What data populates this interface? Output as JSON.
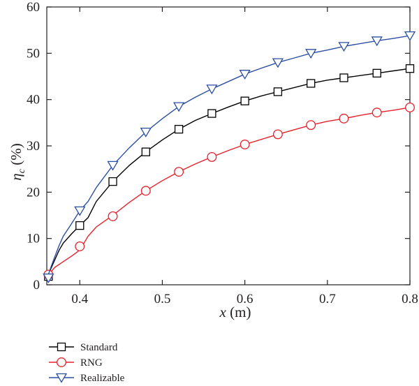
{
  "chart_data": {
    "type": "line",
    "xlabel": {
      "var": "x",
      "unit": " (m)"
    },
    "ylabel": {
      "var": "η",
      "sub": "c",
      "unit": " (%)"
    },
    "xlim": [
      0.36,
      0.8
    ],
    "ylim": [
      0,
      60
    ],
    "xticks": [
      "0.4",
      "0.5",
      "0.6",
      "0.7",
      "0.8"
    ],
    "yticks": [
      "0",
      "10",
      "20",
      "30",
      "40",
      "50",
      "60"
    ],
    "xtick_values": [
      0.4,
      0.5,
      0.6,
      0.7,
      0.8
    ],
    "ytick_values": [
      0,
      10,
      20,
      30,
      40,
      50,
      60
    ],
    "grid": false,
    "legend_position": "bottom-left",
    "series": [
      {
        "name": "Standard",
        "color": "#000000",
        "marker": "square",
        "x": [
          0.36,
          0.365,
          0.37,
          0.375,
          0.38,
          0.39,
          0.4,
          0.41,
          0.42,
          0.44,
          0.46,
          0.48,
          0.5,
          0.52,
          0.54,
          0.56,
          0.58,
          0.6,
          0.62,
          0.64,
          0.66,
          0.68,
          0.7,
          0.72,
          0.74,
          0.76,
          0.78,
          0.8
        ],
        "y": [
          1.5,
          3.5,
          5.5,
          7.5,
          9.0,
          11.0,
          12.8,
          14.5,
          18.0,
          22.3,
          25.8,
          28.7,
          31.3,
          33.6,
          35.5,
          37.0,
          38.4,
          39.7,
          40.8,
          41.7,
          42.6,
          43.5,
          44.2,
          44.7,
          45.2,
          45.7,
          46.2,
          46.7
        ],
        "marker_x": [
          0.362,
          0.4,
          0.44,
          0.48,
          0.52,
          0.56,
          0.6,
          0.64,
          0.68,
          0.72,
          0.76,
          0.8
        ],
        "marker_y": [
          1.8,
          12.8,
          22.3,
          28.7,
          33.6,
          37.0,
          39.7,
          41.7,
          43.5,
          44.7,
          45.7,
          46.7
        ]
      },
      {
        "name": "RNG",
        "color": "#e8202a",
        "marker": "circle",
        "x": [
          0.36,
          0.365,
          0.37,
          0.38,
          0.39,
          0.4,
          0.41,
          0.42,
          0.44,
          0.46,
          0.48,
          0.5,
          0.52,
          0.54,
          0.56,
          0.58,
          0.6,
          0.62,
          0.64,
          0.66,
          0.68,
          0.7,
          0.72,
          0.74,
          0.76,
          0.78,
          0.8
        ],
        "y": [
          1.5,
          2.8,
          3.8,
          5.0,
          6.2,
          7.5,
          10.5,
          12.5,
          15.0,
          17.8,
          20.3,
          22.5,
          24.4,
          26.1,
          27.6,
          29.0,
          30.3,
          31.4,
          32.5,
          33.5,
          34.5,
          35.3,
          35.9,
          36.6,
          37.2,
          37.7,
          38.3
        ],
        "marker_x": [
          0.362,
          0.4,
          0.44,
          0.48,
          0.52,
          0.56,
          0.6,
          0.64,
          0.68,
          0.72,
          0.76,
          0.8
        ],
        "marker_y": [
          2.2,
          8.3,
          14.8,
          20.3,
          24.4,
          27.6,
          30.3,
          32.5,
          34.5,
          35.9,
          37.2,
          38.3
        ]
      },
      {
        "name": "Realizable",
        "color": "#2b4fa3",
        "marker": "triangle-down",
        "x": [
          0.36,
          0.365,
          0.37,
          0.375,
          0.38,
          0.39,
          0.4,
          0.41,
          0.42,
          0.44,
          0.46,
          0.48,
          0.5,
          0.52,
          0.54,
          0.56,
          0.58,
          0.6,
          0.62,
          0.64,
          0.66,
          0.68,
          0.7,
          0.72,
          0.74,
          0.76,
          0.78,
          0.8
        ],
        "y": [
          1.2,
          3.8,
          6.2,
          8.5,
          10.5,
          13.2,
          16.0,
          18.0,
          21.0,
          25.8,
          29.6,
          33.0,
          35.9,
          38.5,
          40.5,
          42.3,
          43.9,
          45.5,
          46.8,
          48.0,
          49.0,
          50.0,
          50.7,
          51.5,
          52.1,
          52.7,
          53.2,
          53.8
        ],
        "marker_x": [
          0.362,
          0.4,
          0.44,
          0.48,
          0.52,
          0.56,
          0.6,
          0.64,
          0.68,
          0.72,
          0.76,
          0.8
        ],
        "marker_y": [
          1.5,
          16.0,
          25.8,
          33.0,
          38.5,
          42.3,
          45.5,
          48.0,
          50.0,
          51.5,
          52.7,
          53.8
        ]
      }
    ]
  }
}
